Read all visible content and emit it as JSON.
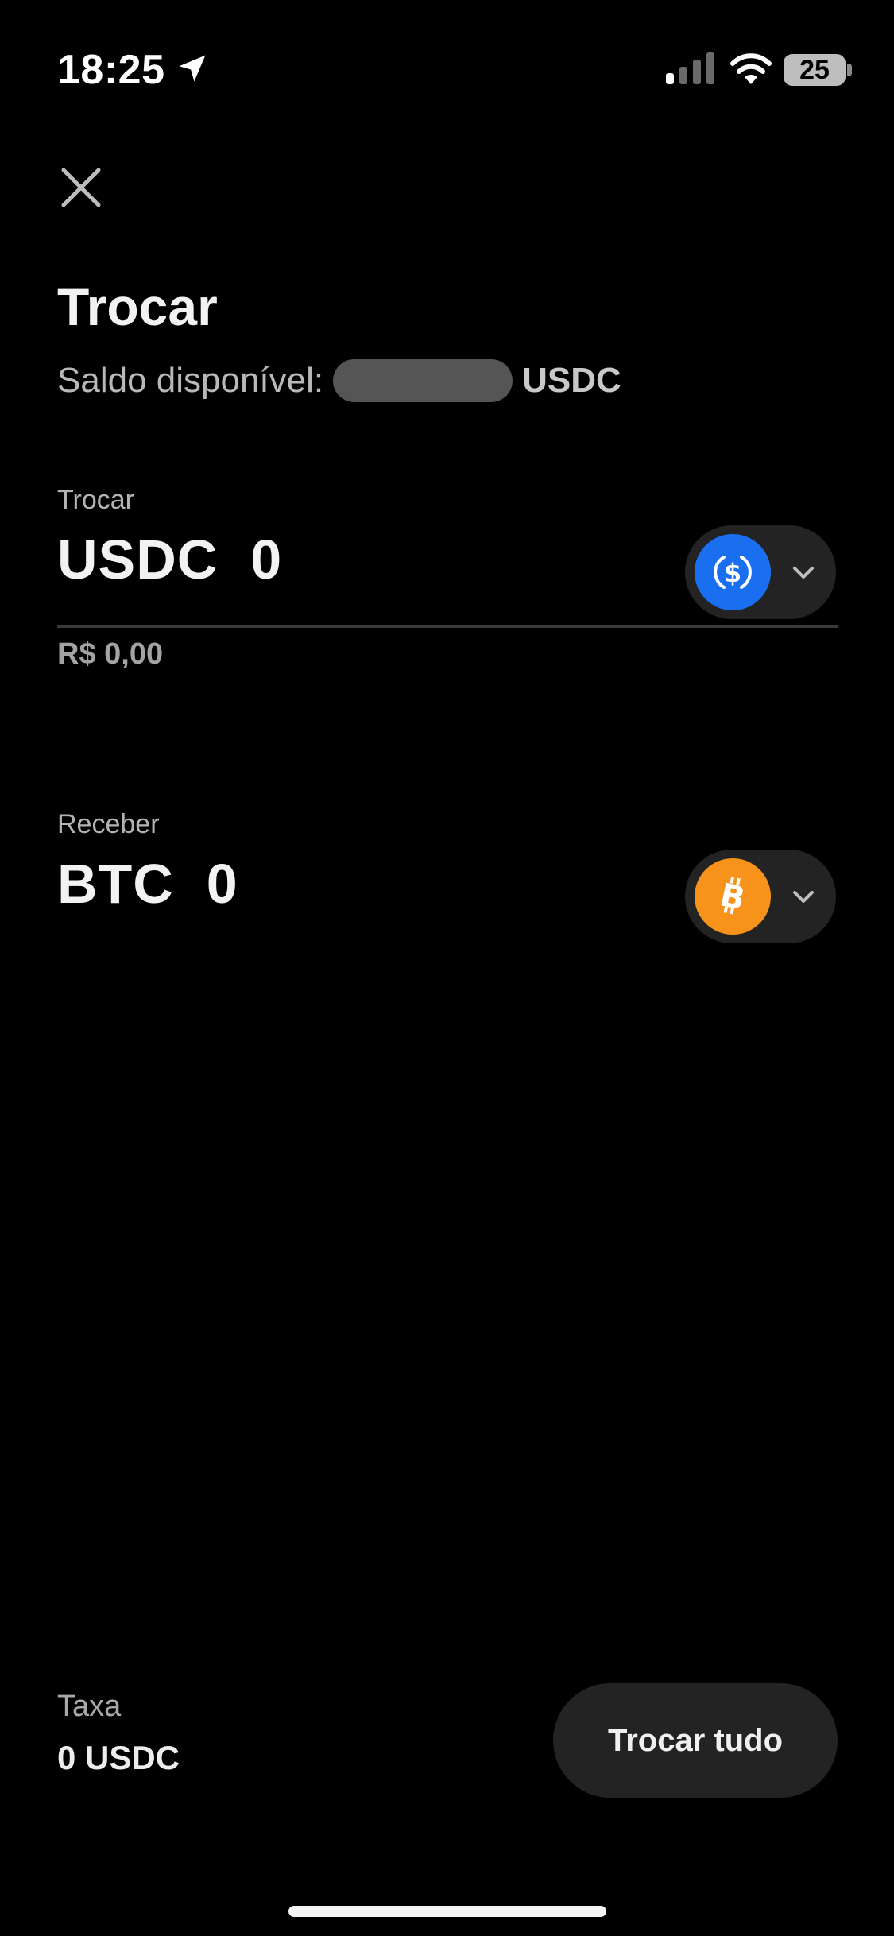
{
  "status_bar": {
    "time": "18:25",
    "battery": "25"
  },
  "header": {
    "title": "Trocar",
    "balance_label": "Saldo disponível:",
    "balance_unit": "USDC"
  },
  "from": {
    "label": "Trocar",
    "amount": "USDC  0",
    "fiat": "R$ 0,00",
    "coin_icon": "usdc-icon",
    "coin_color": "#1a6ff0"
  },
  "to": {
    "label": "Receber",
    "amount": "BTC  0",
    "coin_icon": "bitcoin-icon",
    "coin_color": "#f7931a"
  },
  "footer": {
    "fee_label": "Taxa",
    "fee_value": "0 USDC",
    "swap_all_label": "Trocar tudo"
  },
  "colors": {
    "background": "#000000",
    "surface": "#232323"
  }
}
